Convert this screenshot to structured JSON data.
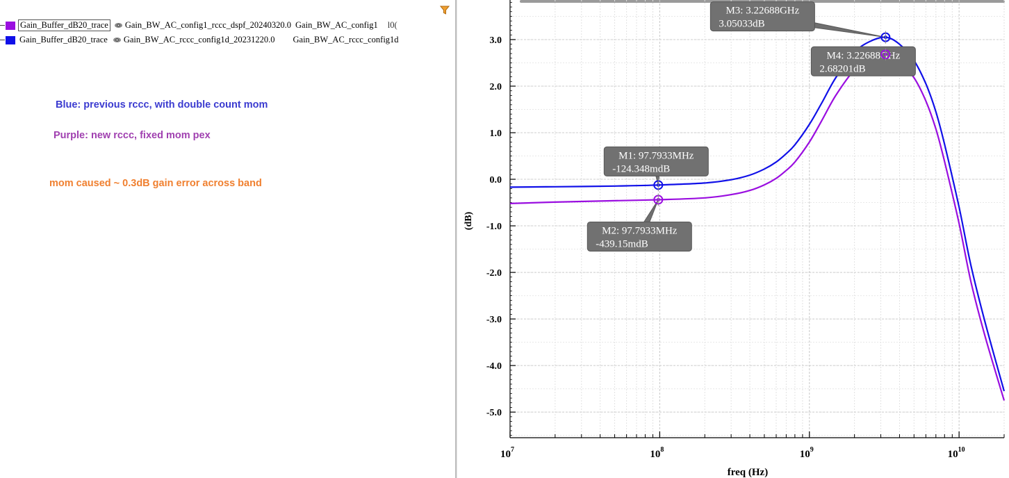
{
  "legend": {
    "rows": [
      {
        "name": "Gain_Buffer_dB20_trace",
        "file": "Gain_BW_AC_config1_rccc_dspf_20240320.0",
        "test": "Gain_BW_AC_config1",
        "extra": "l0(",
        "color": "#9a0ee0"
      },
      {
        "name": "Gain_Buffer_dB20_trace",
        "file": "Gain_BW_AC_rccc_config1d_20231220.0",
        "test": "Gain_BW_AC_rccc_config1d",
        "extra": "",
        "color": "#1010e8"
      }
    ]
  },
  "notes": {
    "blue": "Blue: previous rccc, with double count mom",
    "purple": "Purple: new rccc, fixed mom pex",
    "orange": "mom caused ~ 0.3dB gain error across band",
    "colors": {
      "blue": "#3b3bd0",
      "purple": "#a040b0",
      "orange": "#f08030"
    }
  },
  "icons": {
    "filter": "filter-icon"
  },
  "chart_data": {
    "type": "line",
    "xlabel": "freq (Hz)",
    "ylabel": "(dB)",
    "xscale": "log",
    "xlim": [
      10000000.0,
      20000000000.0
    ],
    "ylim": [
      -5.55,
      3.85
    ],
    "x_ticks": [
      {
        "base": "10",
        "exp": "7",
        "value": 10000000.0
      },
      {
        "base": "10",
        "exp": "8",
        "value": 100000000.0
      },
      {
        "base": "10",
        "exp": "9",
        "value": 1000000000.0
      },
      {
        "base": "10",
        "exp": "10",
        "value": 10000000000.0
      }
    ],
    "y_ticks": [
      {
        "label": "3.0",
        "value": 3
      },
      {
        "label": "2.0",
        "value": 2
      },
      {
        "label": "1.0",
        "value": 1
      },
      {
        "label": "0.0",
        "value": 0
      },
      {
        "label": "-1.0",
        "value": -1
      },
      {
        "label": "-2.0",
        "value": -2
      },
      {
        "label": "-3.0",
        "value": -3
      },
      {
        "label": "-4.0",
        "value": -4
      },
      {
        "label": "-5.0",
        "value": -5
      }
    ],
    "grid": true,
    "series": [
      {
        "color": "#1010e8",
        "x": [
          10000000.0,
          20000000.0,
          50000000.0,
          97793300.0,
          200000000.0,
          300000000.0,
          400000000.0,
          500000000.0,
          600000000.0,
          700000000.0,
          800000000.0,
          1000000000.0,
          1200000000.0,
          1500000000.0,
          2000000000.0,
          2500000000.0,
          3226880000.0,
          4000000000.0,
          5000000000.0,
          6000000000.0,
          7000000000.0,
          8000000000.0,
          10000000000.0,
          12000000000.0,
          15000000000.0,
          20000000000.0
        ],
        "y": [
          -0.17,
          -0.16,
          -0.145,
          -0.124,
          -0.08,
          -0.01,
          0.09,
          0.22,
          0.37,
          0.55,
          0.74,
          1.18,
          1.62,
          2.18,
          2.72,
          2.95,
          3.05,
          2.9,
          2.55,
          2.05,
          1.45,
          0.75,
          -0.6,
          -1.85,
          -3.1,
          -4.55
        ]
      },
      {
        "color": "#9a0ee0",
        "x": [
          10000000.0,
          20000000.0,
          50000000.0,
          97793300.0,
          200000000.0,
          300000000.0,
          400000000.0,
          500000000.0,
          600000000.0,
          700000000.0,
          800000000.0,
          1000000000.0,
          1200000000.0,
          1500000000.0,
          2000000000.0,
          2500000000.0,
          3226880000.0,
          4000000000.0,
          5000000000.0,
          6000000000.0,
          7000000000.0,
          8000000000.0,
          10000000000.0,
          12000000000.0,
          15000000000.0,
          20000000000.0
        ],
        "y": [
          -0.52,
          -0.49,
          -0.46,
          -0.439,
          -0.4,
          -0.33,
          -0.24,
          -0.12,
          0.02,
          0.19,
          0.37,
          0.8,
          1.24,
          1.8,
          2.35,
          2.58,
          2.68,
          2.53,
          2.18,
          1.68,
          1.08,
          0.38,
          -0.95,
          -2.2,
          -3.4,
          -4.75
        ]
      }
    ],
    "markers": [
      {
        "id": "M1",
        "line1": "M1: 97.7933MHz",
        "line2": "-124.348mdB",
        "x": 97793300.0,
        "y": -0.124,
        "color": "#1010e8",
        "anchor": "above"
      },
      {
        "id": "M2",
        "line1": "M2: 97.7933MHz",
        "line2": "-439.15mdB",
        "x": 97793300.0,
        "y": -0.439,
        "color": "#9a0ee0",
        "anchor": "below-left"
      },
      {
        "id": "M3",
        "line1": "M3: 3.22688GHz",
        "line2": "3.05033dB",
        "x": 3226880000.0,
        "y": 3.05,
        "color": "#1010e8",
        "anchor": "above-left"
      },
      {
        "id": "M4",
        "line1": "M4: 3.22688GHz",
        "line2": "2.68201dB",
        "x": 3226880000.0,
        "y": 2.682,
        "color": "#9a0ee0",
        "anchor": "below-left"
      }
    ]
  }
}
